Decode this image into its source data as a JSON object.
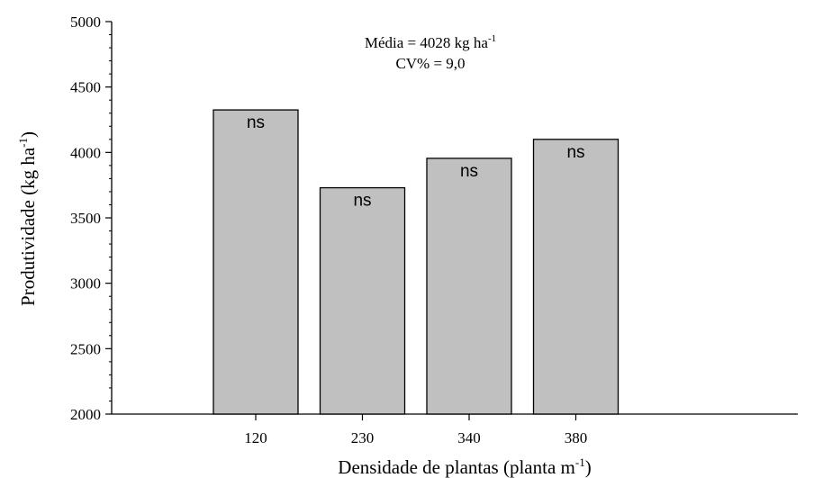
{
  "chart_data": {
    "type": "bar",
    "categories": [
      "120",
      "230",
      "340",
      "380"
    ],
    "values": [
      4325,
      3730,
      3955,
      4100
    ],
    "bar_labels": [
      "ns",
      "ns",
      "ns",
      "ns"
    ],
    "xlabel": {
      "text": "Densidade de plantas (planta m",
      "sup": "-1",
      "tail": ")"
    },
    "ylabel": {
      "text": "Produtividade (kg ha",
      "sup": "-1",
      "tail": ")"
    },
    "annotation": {
      "line1": {
        "text": "Média = 4028 kg ha",
        "sup": "-1"
      },
      "line2": "CV% = 9,0"
    },
    "ylim": [
      2000,
      5000
    ],
    "yticks": [
      "2000",
      "2500",
      "3000",
      "3500",
      "4000",
      "4500",
      "5000"
    ],
    "grid": false,
    "bar_color": "#c0c0c0"
  }
}
